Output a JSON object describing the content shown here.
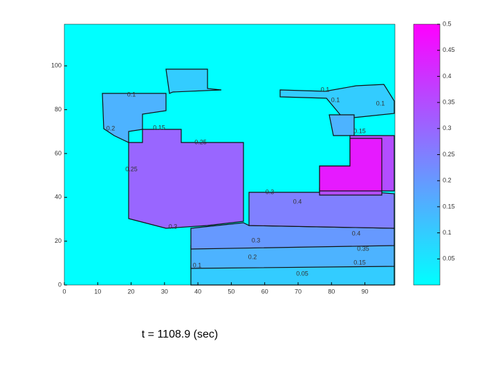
{
  "chart_data": {
    "type": "contour",
    "title": "t = 1108.9 (sec)",
    "xlim": [
      0,
      99
    ],
    "xticks": [
      0,
      10,
      20,
      30,
      40,
      50,
      60,
      70,
      80,
      90
    ],
    "ylim": [
      0,
      119
    ],
    "yticks": [
      0,
      20,
      40,
      60,
      80,
      100
    ],
    "colormap": [
      "#00ffff",
      "#ff00ff"
    ],
    "clim": [
      0,
      0.5
    ],
    "cticks": [
      0.05,
      0.1,
      0.15,
      0.2,
      0.25,
      0.3,
      0.35,
      0.4,
      0.45,
      0.5
    ],
    "region_values": [
      0.15,
      0.1,
      0.1,
      0.15,
      0.3,
      0.1,
      0.15,
      0.2,
      0.25,
      0.35,
      0.45
    ],
    "contour_labels": [
      0.1,
      0.2,
      0.15,
      0.1,
      0.1,
      0.1,
      0.15,
      0.25,
      0.25,
      0.3,
      0.3,
      0.4,
      0.4,
      0.35,
      0.3,
      0.2,
      0.15,
      0.1,
      0.05
    ]
  }
}
